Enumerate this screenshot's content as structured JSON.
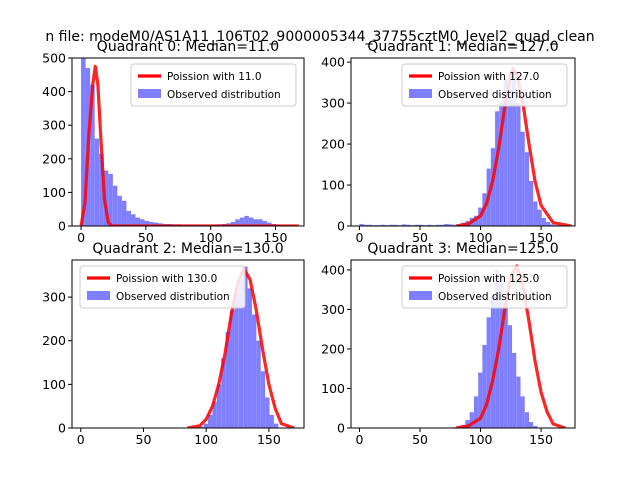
{
  "figure": {
    "suptitle": "n file: modeM0/AS1A11_106T02_9000005344_37755cztM0_level2_quad_clean"
  },
  "colors": {
    "hist": "#7f7fff",
    "line": "#ff0000",
    "axis": "#000000",
    "bg": "#ffffff"
  },
  "chart_data": [
    {
      "type": "histogram",
      "title": "Quadrant 0: Median=11.0",
      "xlim": [
        -7,
        172
      ],
      "ylim": [
        0,
        500
      ],
      "xticks": [
        0,
        50,
        100,
        150
      ],
      "yticks": [
        0,
        100,
        200,
        300,
        400,
        500
      ],
      "legend": {
        "placement": "top-right",
        "line_label": "Poission with 11.0",
        "hist_label": "Observed distribution"
      },
      "bin_start": 0,
      "bin_width": 3.5,
      "hist_values": [
        500,
        470,
        420,
        260,
        215,
        165,
        155,
        120,
        90,
        75,
        45,
        35,
        25,
        20,
        15,
        12,
        10,
        8,
        6,
        6,
        5,
        5,
        4,
        4,
        4,
        3,
        3,
        3,
        3,
        4,
        5,
        6,
        8,
        12,
        20,
        25,
        30,
        25,
        20,
        20,
        15,
        10,
        6,
        4,
        3,
        2,
        2,
        2
      ],
      "line_x": [
        0,
        3,
        6,
        9,
        11,
        13,
        15,
        18,
        21,
        24,
        30,
        40,
        60,
        100,
        140,
        168
      ],
      "line_y": [
        0,
        70,
        270,
        420,
        475,
        420,
        280,
        80,
        10,
        0,
        0,
        0,
        0,
        0,
        0,
        0
      ]
    },
    {
      "type": "histogram",
      "title": "Quadrant 1: Median=127.0",
      "xlim": [
        -7,
        178
      ],
      "ylim": [
        0,
        410
      ],
      "xticks": [
        0,
        50,
        100,
        150
      ],
      "yticks": [
        0,
        100,
        200,
        300,
        400
      ],
      "legend": {
        "placement": "top-right",
        "line_label": "Poission with 127.0",
        "hist_label": "Observed distribution"
      },
      "bin_start": 0,
      "bin_width": 3.5,
      "hist_values": [
        5,
        3,
        3,
        2,
        2,
        3,
        2,
        3,
        3,
        2,
        4,
        3,
        2,
        3,
        3,
        2,
        3,
        2,
        3,
        3,
        5,
        4,
        3,
        3,
        8,
        12,
        20,
        25,
        45,
        80,
        140,
        190,
        280,
        300,
        360,
        330,
        380,
        300,
        230,
        180,
        110,
        60,
        40,
        20,
        10,
        4,
        2,
        1
      ],
      "line_x": [
        80,
        90,
        100,
        105,
        110,
        115,
        120,
        125,
        127,
        130,
        135,
        140,
        145,
        150,
        160,
        175
      ],
      "line_y": [
        0,
        5,
        25,
        55,
        110,
        190,
        290,
        370,
        385,
        370,
        300,
        200,
        110,
        50,
        8,
        0
      ]
    },
    {
      "type": "histogram",
      "title": "Quadrant 2: Median=130.0",
      "xlim": [
        -7,
        178
      ],
      "ylim": [
        0,
        385
      ],
      "xticks": [
        0,
        50,
        100,
        150
      ],
      "yticks": [
        0,
        100,
        200,
        300
      ],
      "legend": {
        "placement": "top-left",
        "line_label": "Poission with 130.0",
        "hist_label": "Observed distribution"
      },
      "bin_start": 0,
      "bin_width": 3.5,
      "hist_values": [
        0,
        0,
        0,
        0,
        0,
        0,
        0,
        0,
        0,
        0,
        0,
        0,
        0,
        0,
        0,
        0,
        0,
        0,
        0,
        0,
        0,
        0,
        0,
        0,
        0,
        0,
        1,
        3,
        10,
        30,
        60,
        100,
        160,
        220,
        270,
        310,
        340,
        370,
        320,
        260,
        200,
        130,
        70,
        30,
        10,
        0,
        0,
        0
      ],
      "line_x": [
        85,
        95,
        100,
        105,
        110,
        115,
        120,
        125,
        130,
        135,
        140,
        145,
        150,
        155,
        160,
        170
      ],
      "line_y": [
        0,
        5,
        20,
        50,
        100,
        170,
        260,
        330,
        365,
        340,
        270,
        180,
        100,
        45,
        10,
        0
      ]
    },
    {
      "type": "histogram",
      "title": "Quadrant 3: Median=125.0",
      "xlim": [
        -7,
        178
      ],
      "ylim": [
        0,
        425
      ],
      "xticks": [
        0,
        50,
        100,
        150
      ],
      "yticks": [
        0,
        100,
        200,
        300,
        400
      ],
      "legend": {
        "placement": "top-right",
        "line_label": "Poission with 125.0",
        "hist_label": "Observed distribution"
      },
      "bin_start": 0,
      "bin_width": 3.5,
      "hist_values": [
        0,
        0,
        0,
        0,
        0,
        0,
        0,
        0,
        0,
        0,
        0,
        0,
        0,
        0,
        0,
        0,
        0,
        0,
        0,
        0,
        0,
        0,
        2,
        4,
        8,
        20,
        40,
        80,
        140,
        210,
        280,
        340,
        400,
        380,
        320,
        260,
        190,
        130,
        80,
        40,
        15,
        5,
        1,
        0,
        0,
        0,
        0,
        0
      ],
      "line_x": [
        80,
        90,
        100,
        105,
        110,
        115,
        120,
        125,
        130,
        135,
        140,
        145,
        150,
        155,
        160,
        170
      ],
      "line_y": [
        0,
        5,
        25,
        60,
        120,
        200,
        300,
        385,
        410,
        360,
        270,
        170,
        90,
        40,
        10,
        0
      ]
    }
  ]
}
